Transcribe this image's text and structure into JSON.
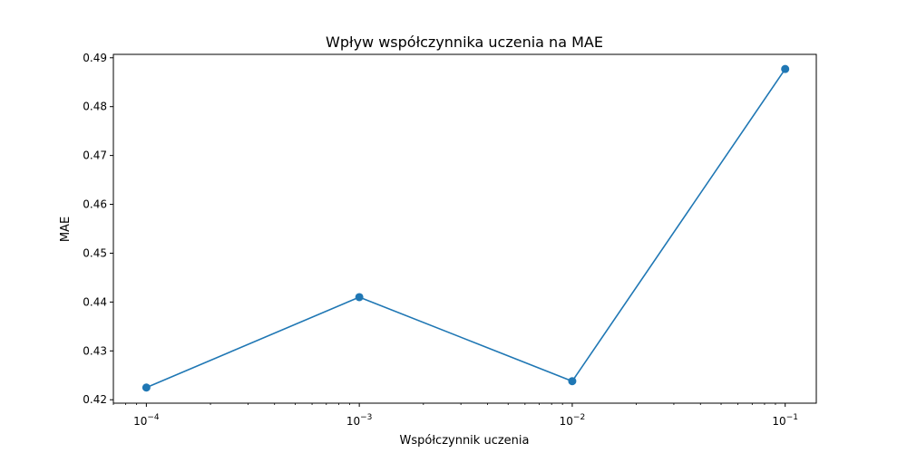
{
  "chart_data": {
    "type": "line",
    "title": "Wpływ współczynnika uczenia na MAE",
    "xlabel": "Współczynnik uczenia",
    "ylabel": "MAE",
    "x_scale": "log",
    "xlim": [
      7e-05,
      0.14
    ],
    "ylim": [
      0.4193,
      0.4907
    ],
    "x_ticks": [
      {
        "value": 0.0001,
        "base": "10",
        "exp": "−4"
      },
      {
        "value": 0.001,
        "base": "10",
        "exp": "−3"
      },
      {
        "value": 0.01,
        "base": "10",
        "exp": "−2"
      },
      {
        "value": 0.1,
        "base": "10",
        "exp": "−1"
      }
    ],
    "y_ticks": [
      {
        "value": 0.42,
        "label": "0.42"
      },
      {
        "value": 0.43,
        "label": "0.43"
      },
      {
        "value": 0.44,
        "label": "0.44"
      },
      {
        "value": 0.45,
        "label": "0.45"
      },
      {
        "value": 0.46,
        "label": "0.46"
      },
      {
        "value": 0.47,
        "label": "0.47"
      },
      {
        "value": 0.48,
        "label": "0.48"
      },
      {
        "value": 0.49,
        "label": "0.49"
      }
    ],
    "grid": false,
    "series": [
      {
        "color": "#1f77b4",
        "marker": "circle",
        "x": [
          0.0001,
          0.001,
          0.01,
          0.1
        ],
        "y": [
          0.4225,
          0.441,
          0.4238,
          0.4877
        ]
      }
    ]
  }
}
